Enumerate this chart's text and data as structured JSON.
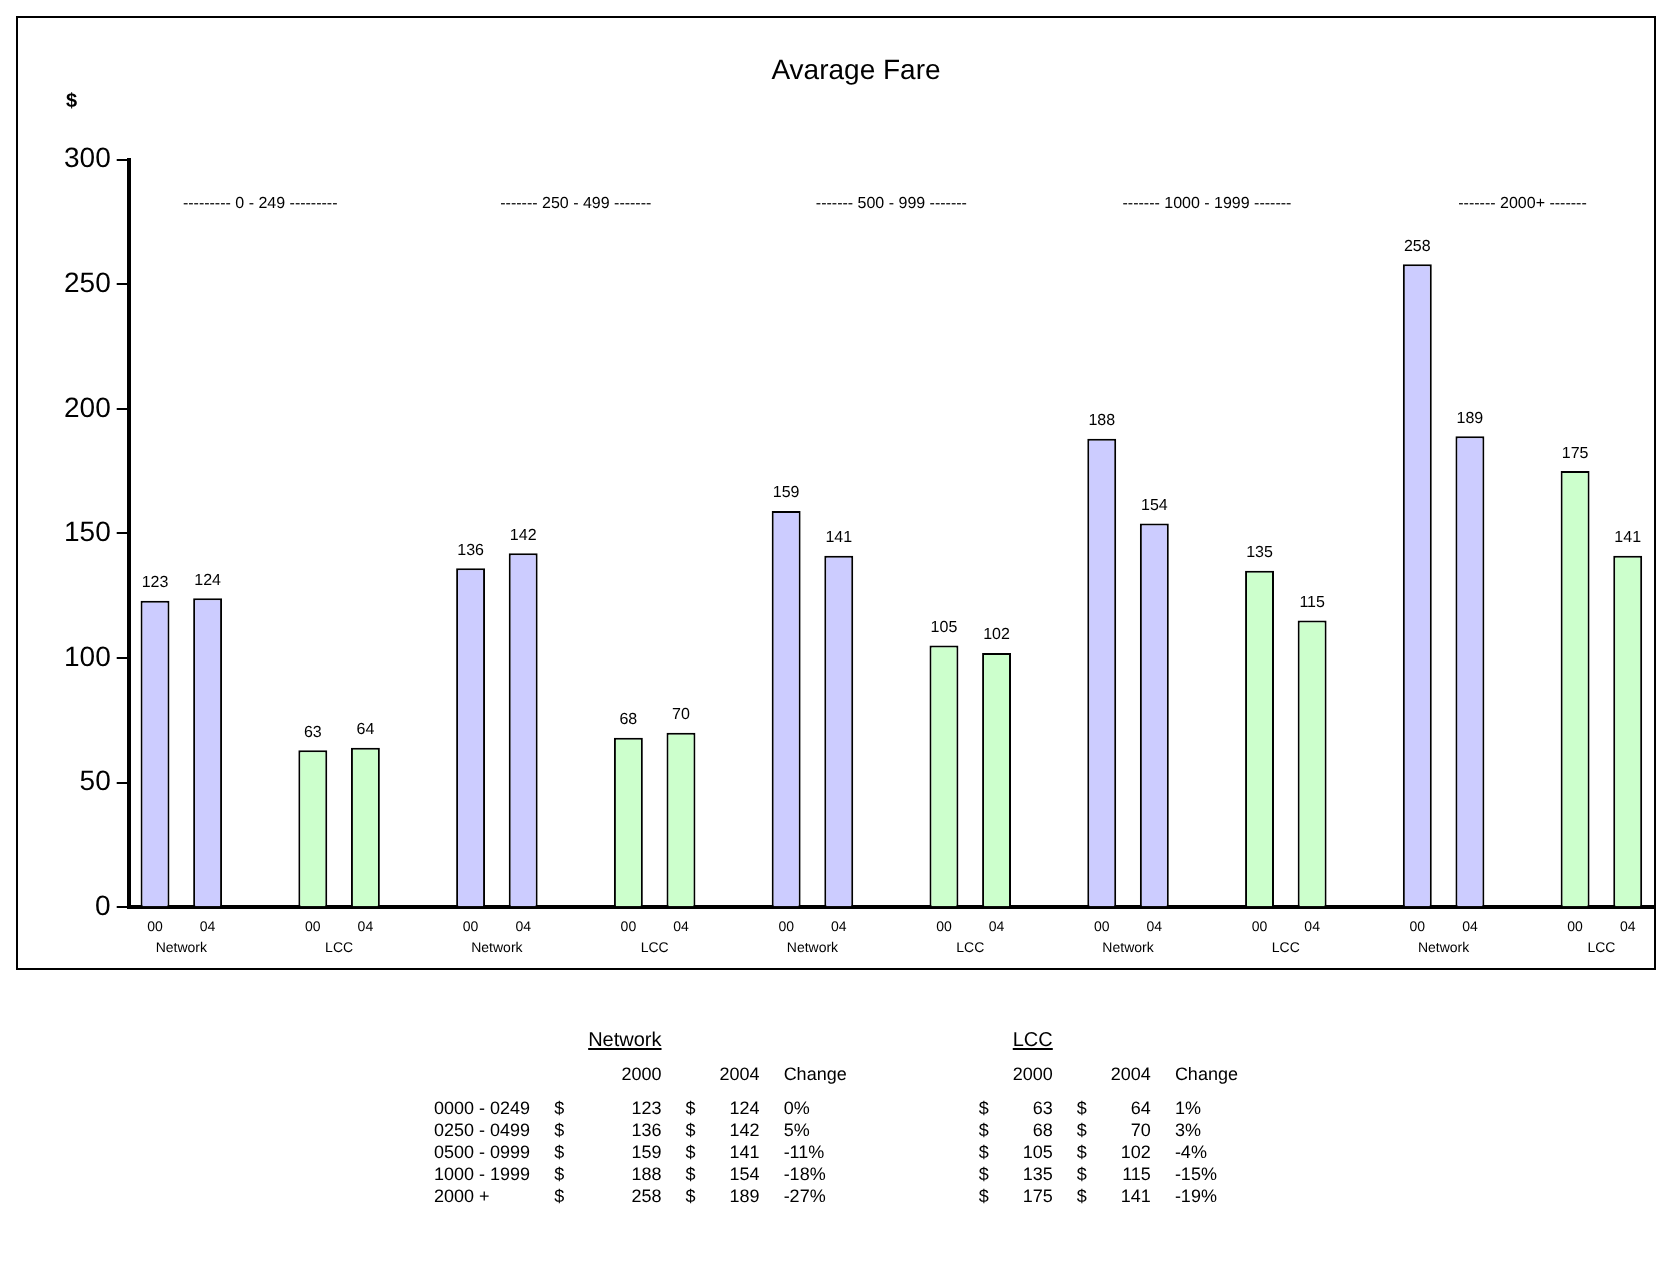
{
  "chart_data": {
    "type": "bar",
    "title": "Avarage Fare",
    "ylabel": "$",
    "categories": [
      "00",
      "04",
      null,
      "00",
      "04",
      null,
      "00",
      "04",
      null,
      "00",
      "04",
      null,
      "00",
      "04",
      null,
      "00",
      "04",
      null,
      "00",
      "04",
      null,
      "00",
      "04",
      null,
      "00",
      "04",
      null,
      "00",
      "04"
    ],
    "series": [
      {
        "name": "Network",
        "color": "#ccccff",
        "values": [
          123,
          124,
          null,
          null,
          null,
          null,
          136,
          142,
          null,
          null,
          null,
          null,
          159,
          141,
          null,
          null,
          null,
          null,
          188,
          154,
          null,
          null,
          null,
          null,
          258,
          189,
          null,
          null,
          null
        ]
      },
      {
        "name": "LCC",
        "color": "#ccffcc",
        "values": [
          null,
          null,
          null,
          63,
          64,
          null,
          null,
          null,
          null,
          68,
          70,
          null,
          null,
          null,
          null,
          105,
          102,
          null,
          null,
          null,
          null,
          135,
          115,
          null,
          null,
          null,
          null,
          175,
          141
        ]
      }
    ],
    "ylim": [
      0,
      300
    ],
    "yticks": [
      0,
      50,
      100,
      150,
      200,
      250,
      300
    ],
    "grid": false,
    "legend": false,
    "data_labels": true,
    "annotations": [
      "--------- 0 - 249 ---------",
      "------- 250 - 499 -------",
      "------- 500 - 999 -------",
      "------- 1000 - 1999 -------",
      "------- 2000+ -------",
      "\t\tNetwork\t\t\t\t\tLCC\t\t\t",
      "\t\t2000\t\t2004\tChange\t\t2000\t\t2004\tChange",
      "0000 - 0249\t$\t123\t$\t124\t0%\t$\t63\t$\t64\t1%",
      "0250 - 0499\t$\t136\t$\t142\t5%\t$\t68\t$\t70\t3%",
      "0500 - 0999\t$\t159\t$\t141\t-11%\t$\t105\t$\t102\t-4%",
      "1000 - 1999\t$\t188\t$\t154\t-18%\t$\t135\t$\t115\t-15%",
      "2000 +\t$\t258\t$\t189\t-27%\t$\t175\t$\t141\t-19%"
    ]
  }
}
